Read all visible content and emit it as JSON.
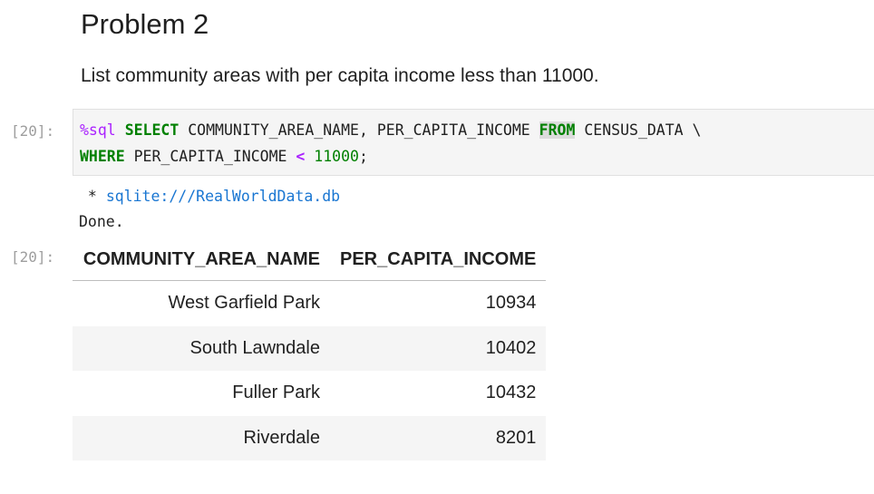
{
  "markdown": {
    "heading": "Problem 2",
    "paragraph": "List community areas with per capita income less than 11000."
  },
  "code_cell": {
    "in_prompt": "[20]:",
    "line1": {
      "magic": "%sql",
      "select_kw": "SELECT",
      "columns_text": " COMMUNITY_AREA_NAME, PER_CAPITA_INCOME ",
      "from_kw": "FROM",
      "table_text": " CENSUS_DATA \\"
    },
    "line2": {
      "where_kw": "WHERE",
      "column_text": " PER_CAPITA_INCOME ",
      "operator": "<",
      "space": " ",
      "number": "11000",
      "terminator": ";"
    }
  },
  "stream_output": {
    "prefix": " * ",
    "connection": "sqlite:///RealWorldData.db",
    "done": "Done."
  },
  "result": {
    "out_prompt": "[20]:",
    "columns": [
      "COMMUNITY_AREA_NAME",
      "PER_CAPITA_INCOME"
    ],
    "rows": [
      [
        "West Garfield Park",
        "10934"
      ],
      [
        "South Lawndale",
        "10402"
      ],
      [
        "Fuller Park",
        "10432"
      ],
      [
        "Riverdale",
        "8201"
      ]
    ]
  }
}
